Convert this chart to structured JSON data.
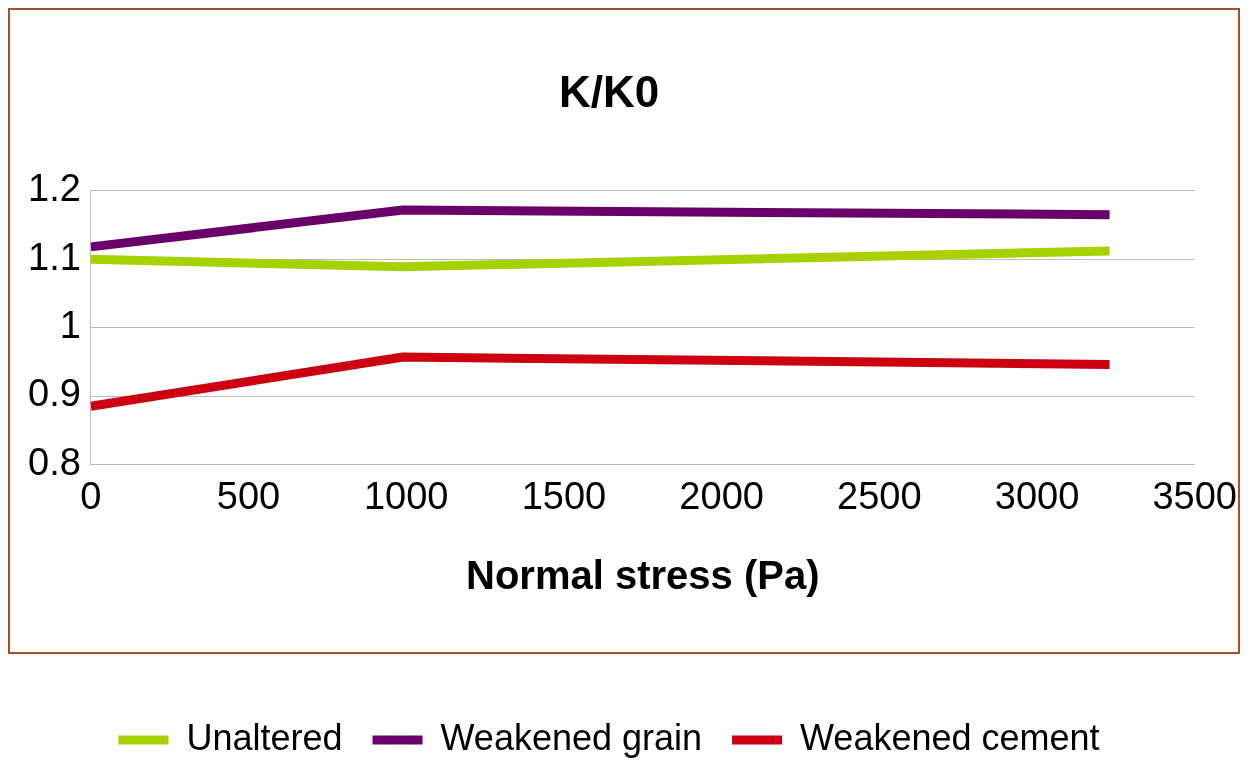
{
  "chart_data": {
    "type": "line",
    "title": "K/K0",
    "xlabel": "Normal stress (Pa)",
    "x": [
      0,
      990,
      3230
    ],
    "series": [
      {
        "name": "Unaltered",
        "color": "#a8d100",
        "values": [
          1.1,
          1.089,
          1.112
        ]
      },
      {
        "name": "Weakened grain",
        "color": "#6a006a",
        "values": [
          1.118,
          1.172,
          1.165
        ]
      },
      {
        "name": "Weakened cement",
        "color": "#cc0011",
        "values": [
          0.885,
          0.957,
          0.946
        ]
      }
    ],
    "xlim": [
      0,
      3500
    ],
    "xticks": [
      0,
      500,
      1000,
      1500,
      2000,
      2500,
      3000,
      3500
    ],
    "ylim": [
      0.8,
      1.2
    ],
    "yticks": [
      0.8,
      0.9,
      1,
      1.1,
      1.2
    ],
    "grid": "y",
    "legend": "bottom",
    "marker": "none",
    "line_style": "solid"
  }
}
